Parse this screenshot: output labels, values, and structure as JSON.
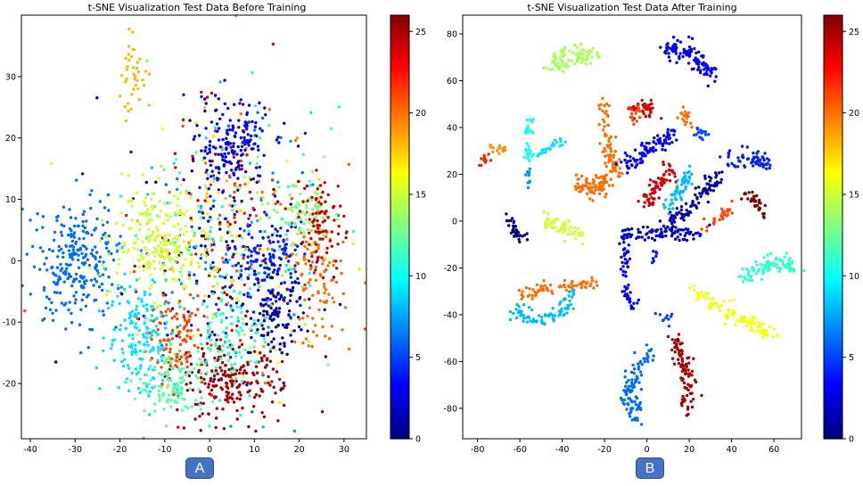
{
  "badges": {
    "left": "A",
    "right": "B",
    "color": "#4472c4"
  },
  "colormap": "jet",
  "chart_data": [
    {
      "type": "scatter",
      "title": "t-SNE Visualization Test Data Before Training",
      "xlabel": "",
      "ylabel": "",
      "xlim": [
        -42,
        35
      ],
      "ylim": [
        -29,
        40
      ],
      "xticks": [
        -40,
        -30,
        -20,
        -10,
        0,
        10,
        20,
        30
      ],
      "yticks": [
        -20,
        -10,
        0,
        10,
        20,
        30
      ],
      "colorbar": {
        "min": 0,
        "max": 26,
        "ticks": [
          0,
          5,
          10,
          15,
          20,
          25
        ]
      },
      "grid": false,
      "clusters": [
        {
          "class": 6,
          "cx": -30,
          "cy": 0,
          "sx": 4.5,
          "sy": 5,
          "n": 260
        },
        {
          "class": 15,
          "cx": -12,
          "cy": 3,
          "sx": 5,
          "sy": 4,
          "n": 220
        },
        {
          "class": 3,
          "cx": 5,
          "cy": 19,
          "sx": 4,
          "sy": 3.5,
          "n": 160
        },
        {
          "class": 25,
          "cx": 4,
          "cy": -20,
          "sx": 6,
          "sy": 3,
          "n": 200
        },
        {
          "class": 9,
          "cx": -15,
          "cy": -12,
          "sx": 4,
          "sy": 5,
          "n": 170
        },
        {
          "class": 12,
          "cx": -8,
          "cy": -20,
          "sx": 4,
          "sy": 3,
          "n": 130
        },
        {
          "class": 4,
          "cx": 13,
          "cy": 0,
          "sx": 4,
          "sy": 3,
          "n": 130
        },
        {
          "class": 1,
          "cx": 15,
          "cy": -9,
          "sx": 3,
          "sy": 3,
          "n": 100
        },
        {
          "class": 13,
          "cx": 22,
          "cy": 7,
          "sx": 3,
          "sy": 3,
          "n": 90
        },
        {
          "class": 20,
          "cx": 24,
          "cy": -4,
          "sx": 3,
          "sy": 5,
          "n": 90
        },
        {
          "class": 24,
          "cx": 25,
          "cy": 6,
          "sx": 2.5,
          "sy": 4,
          "n": 80
        },
        {
          "class": 11,
          "cx": 5,
          "cy": -12,
          "sx": 4,
          "sy": 4,
          "n": 90
        },
        {
          "class": 21,
          "cx": -7,
          "cy": -13,
          "sx": 3,
          "sy": 3,
          "n": 80
        },
        {
          "class": 18,
          "cx": -17,
          "cy": 30,
          "sx": 2,
          "sy": 3,
          "n": 40
        }
      ],
      "background_points": 650
    },
    {
      "type": "scatter",
      "title": "t-SNE Visualization Test Data After Training",
      "xlabel": "",
      "ylabel": "",
      "xlim": [
        -87,
        73
      ],
      "ylim": [
        -93,
        88
      ],
      "xticks": [
        -80,
        -60,
        -40,
        -20,
        0,
        20,
        40,
        60
      ],
      "yticks": [
        -80,
        -60,
        -40,
        -20,
        0,
        20,
        40,
        60,
        80
      ],
      "colorbar": {
        "min": 0,
        "max": 26,
        "ticks": [
          0,
          5,
          10,
          15,
          20,
          25
        ]
      },
      "grid": false,
      "arcs": [
        {
          "class": 14,
          "pts": [
            [
              -45,
              66
            ],
            [
              -35,
              72
            ],
            [
              -25,
              70
            ]
          ],
          "w": 2.2,
          "n": 80
        },
        {
          "class": 3,
          "pts": [
            [
              8,
              75
            ],
            [
              20,
              72
            ],
            [
              32,
              62
            ]
          ],
          "w": 2.0,
          "n": 100
        },
        {
          "class": 20,
          "pts": [
            [
              -20,
              50
            ],
            [
              -18,
              30
            ],
            [
              -14,
              20
            ]
          ],
          "w": 1.8,
          "n": 70
        },
        {
          "class": 24,
          "pts": [
            [
              -8,
              47
            ],
            [
              0,
              50
            ],
            [
              3,
              47
            ]
          ],
          "w": 1.5,
          "n": 40
        },
        {
          "class": 21,
          "pts": [
            [
              -8,
              44
            ],
            [
              -3,
              46
            ]
          ],
          "w": 1.2,
          "n": 15
        },
        {
          "class": 20,
          "pts": [
            [
              17,
              46
            ],
            [
              22,
              41
            ]
          ],
          "w": 1.2,
          "n": 20
        },
        {
          "class": 10,
          "pts": [
            [
              -55,
              44
            ],
            [
              -57,
              34
            ],
            [
              -55,
              27
            ]
          ],
          "w": 1.0,
          "n": 30
        },
        {
          "class": 19,
          "pts": [
            [
              -75,
              33
            ],
            [
              -67,
              30
            ]
          ],
          "w": 1.0,
          "n": 15
        },
        {
          "class": 9,
          "pts": [
            [
              -52,
              28
            ],
            [
              -40,
              34
            ]
          ],
          "w": 1.2,
          "n": 25
        },
        {
          "class": 7,
          "pts": [
            [
              -57,
              22
            ],
            [
              -56,
              15
            ]
          ],
          "w": 1.0,
          "n": 12
        },
        {
          "class": 22,
          "pts": [
            [
              -80,
              24
            ],
            [
              -75,
              27
            ]
          ],
          "w": 1.0,
          "n": 10
        },
        {
          "class": 3,
          "pts": [
            [
              -10,
              23
            ],
            [
              0,
              30
            ],
            [
              12,
              37
            ]
          ],
          "w": 1.8,
          "n": 90
        },
        {
          "class": 24,
          "pts": [
            [
              0,
              8
            ],
            [
              5,
              15
            ],
            [
              12,
              23
            ]
          ],
          "w": 1.6,
          "n": 70
        },
        {
          "class": 8,
          "pts": [
            [
              8,
              5
            ],
            [
              15,
              12
            ],
            [
              20,
              20
            ]
          ],
          "w": 1.4,
          "n": 55
        },
        {
          "class": 20,
          "pts": [
            [
              -35,
              17
            ],
            [
              -25,
              13
            ],
            [
              -18,
              18
            ]
          ],
          "w": 1.8,
          "n": 80
        },
        {
          "class": 5,
          "pts": [
            [
              23,
              39
            ],
            [
              28,
              36
            ]
          ],
          "w": 1.2,
          "n": 15
        },
        {
          "class": 15,
          "pts": [
            [
              -50,
              2
            ],
            [
              -40,
              -3
            ],
            [
              -30,
              -7
            ]
          ],
          "w": 1.6,
          "n": 55
        },
        {
          "class": 0,
          "pts": [
            [
              -65,
              2
            ],
            [
              -62,
              -5
            ],
            [
              -58,
              -7
            ]
          ],
          "w": 1.2,
          "n": 35
        },
        {
          "class": 1,
          "pts": [
            [
              10,
              -2
            ],
            [
              20,
              5
            ],
            [
              30,
              15
            ],
            [
              35,
              22
            ]
          ],
          "w": 1.8,
          "n": 100
        },
        {
          "class": 4,
          "pts": [
            [
              36,
              26
            ],
            [
              50,
              28
            ],
            [
              58,
              24
            ]
          ],
          "w": 1.8,
          "n": 60
        },
        {
          "class": 26,
          "pts": [
            [
              45,
              12
            ],
            [
              52,
              8
            ],
            [
              55,
              2
            ]
          ],
          "w": 1.2,
          "n": 35
        },
        {
          "class": 21,
          "pts": [
            [
              28,
              -3
            ],
            [
              36,
              2
            ],
            [
              40,
              7
            ]
          ],
          "w": 1.2,
          "n": 30
        },
        {
          "class": 2,
          "pts": [
            [
              -15,
              -7
            ],
            [
              0,
              -5
            ],
            [
              15,
              -5
            ],
            [
              28,
              -5
            ]
          ],
          "w": 1.4,
          "n": 90
        },
        {
          "class": 3,
          "pts": [
            [
              -10,
              -10
            ],
            [
              -10,
              -30
            ],
            [
              -7,
              -38
            ]
          ],
          "w": 1.4,
          "n": 50
        },
        {
          "class": 20,
          "pts": [
            [
              -60,
              -32
            ],
            [
              -45,
              -28
            ],
            [
              -25,
              -27
            ]
          ],
          "w": 1.6,
          "n": 70
        },
        {
          "class": 8,
          "pts": [
            [
              -62,
              -38
            ],
            [
              -50,
              -43
            ],
            [
              -40,
              -38
            ],
            [
              -33,
              -30
            ]
          ],
          "w": 1.8,
          "n": 80
        },
        {
          "class": 11,
          "pts": [
            [
              43,
              -25
            ],
            [
              55,
              -20
            ],
            [
              65,
              -18
            ],
            [
              70,
              -20
            ]
          ],
          "w": 1.8,
          "n": 90
        },
        {
          "class": 16,
          "pts": [
            [
              22,
              -30
            ],
            [
              35,
              -37
            ],
            [
              50,
              -45
            ],
            [
              60,
              -48
            ]
          ],
          "w": 2.0,
          "n": 100
        },
        {
          "class": 6,
          "pts": [
            [
              2,
              -53
            ],
            [
              -6,
              -65
            ],
            [
              -9,
              -76
            ],
            [
              -4,
              -83
            ]
          ],
          "w": 2.0,
          "n": 100
        },
        {
          "class": 25,
          "pts": [
            [
              13,
              -50
            ],
            [
              18,
              -62
            ],
            [
              20,
              -72
            ],
            [
              18,
              -80
            ]
          ],
          "w": 1.8,
          "n": 90
        },
        {
          "class": 5,
          "pts": [
            [
              5,
              -40
            ],
            [
              12,
              -42
            ]
          ],
          "w": 1.0,
          "n": 10
        },
        {
          "class": 4,
          "pts": [
            [
              2,
              -18
            ],
            [
              5,
              -14
            ]
          ],
          "w": 0.8,
          "n": 8
        }
      ]
    }
  ]
}
